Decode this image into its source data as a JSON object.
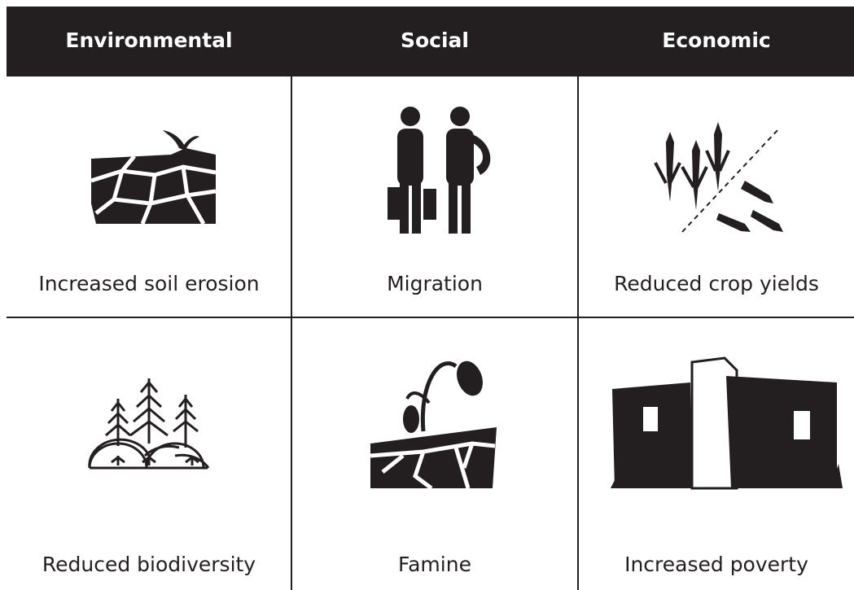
{
  "header": {
    "columns": [
      "Environmental",
      "Social",
      "Economic"
    ]
  },
  "rows": [
    {
      "cells": [
        "Increased soil erosion",
        "Migration",
        "Reduced crop yields"
      ]
    },
    {
      "cells": [
        "Reduced biodiversity",
        "Famine",
        "Increased poverty"
      ]
    }
  ]
}
